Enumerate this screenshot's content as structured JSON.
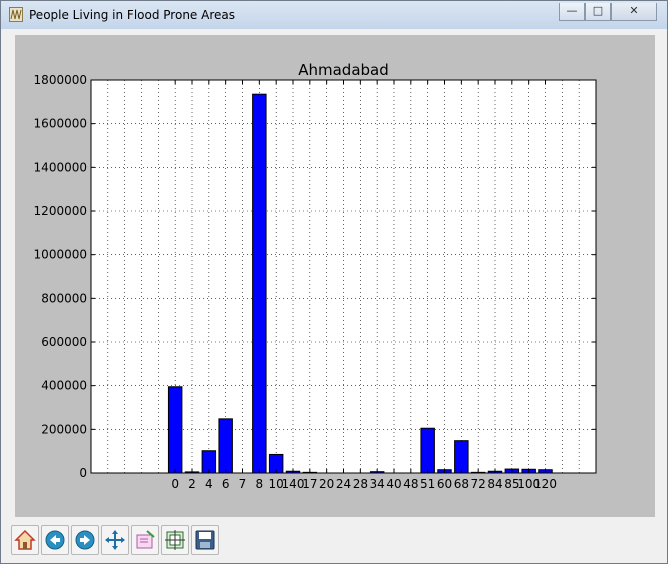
{
  "window": {
    "title": "People Living in Flood Prone Areas",
    "minimize_icon": "minimize-icon",
    "maximize_icon": "maximize-icon",
    "close_icon": "close-icon"
  },
  "toolbar": {
    "buttons": [
      {
        "name": "home-button",
        "icon": "home-icon"
      },
      {
        "name": "back-button",
        "icon": "back-arrow-icon"
      },
      {
        "name": "forward-button",
        "icon": "forward-arrow-icon"
      },
      {
        "name": "pan-button",
        "icon": "move-icon"
      },
      {
        "name": "zoom-button",
        "icon": "zoom-rect-icon"
      },
      {
        "name": "configure-subplots-button",
        "icon": "subplots-icon"
      },
      {
        "name": "save-button",
        "icon": "save-icon"
      }
    ]
  },
  "colors": {
    "figure_bg": "#bfbfbf",
    "axes_bg": "#ffffff",
    "bar_fill": "#0000ff",
    "bar_edge": "#000000"
  },
  "chart_data": {
    "type": "bar",
    "title": "Ahmadabad",
    "xlabel": "",
    "ylabel": "",
    "ylim": [
      0,
      1800000
    ],
    "yticks": [
      0,
      200000,
      400000,
      600000,
      800000,
      1000000,
      1200000,
      1400000,
      1600000,
      1800000
    ],
    "xlim": [
      -5,
      25
    ],
    "grid": true,
    "categories": [
      "0",
      "2",
      "4",
      "6",
      "7",
      "8",
      "10",
      "140",
      "17",
      "20",
      "24",
      "28",
      "34",
      "40",
      "48",
      "51",
      "60",
      "68",
      "72",
      "84",
      "85",
      "100",
      "120"
    ],
    "values": [
      395000,
      5000,
      102000,
      248000,
      0,
      1735000,
      85000,
      8000,
      3000,
      0,
      0,
      0,
      6000,
      0,
      0,
      205000,
      15000,
      148000,
      3000,
      8000,
      18000,
      17000,
      15000
    ]
  }
}
